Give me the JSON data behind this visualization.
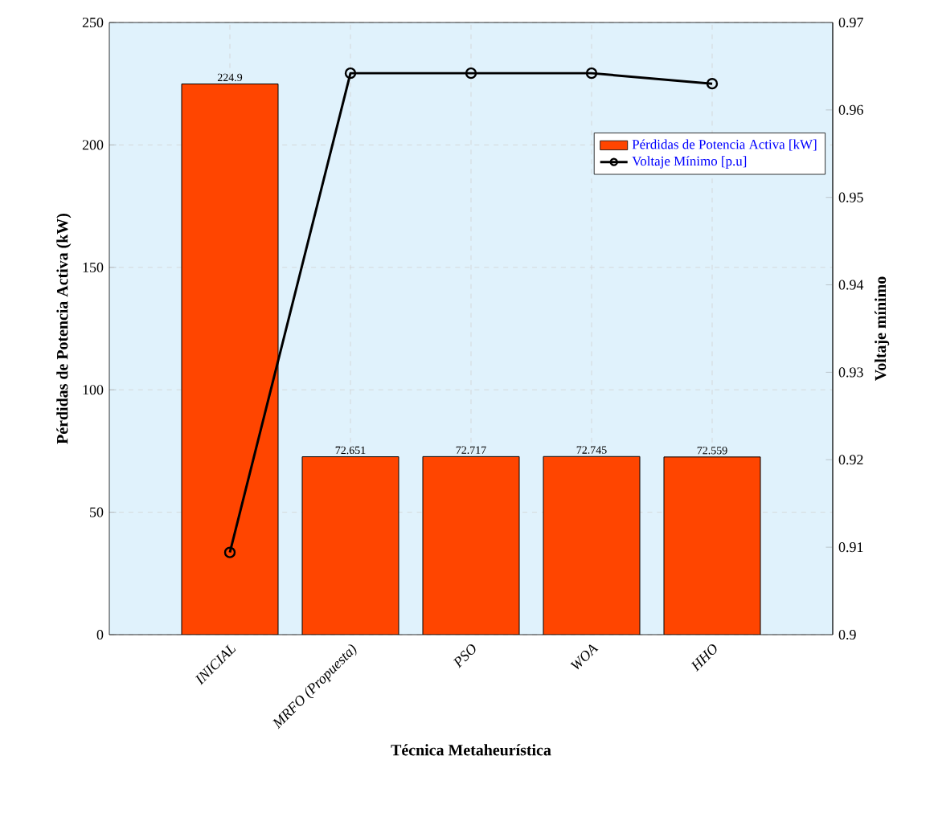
{
  "chart_data": {
    "type": "bar",
    "xlabel": "Técnica Metaheurística",
    "ylabel": "Pérdidas de Potencia Activa (kW)",
    "y2label": "Voltaje mínimo",
    "categories": [
      "INICIAL",
      "MRFO (Propuesta)",
      "PSO",
      "WOA",
      "HHO"
    ],
    "series": [
      {
        "name": "Pérdidas de Potencia Activa [kW]",
        "color": "#ff4500",
        "values": [
          224.9,
          72.651,
          72.717,
          72.745,
          72.559
        ],
        "value_labels": [
          "224.9",
          "72.651",
          "72.717",
          "72.745",
          "72.559"
        ]
      },
      {
        "name": "Voltaje Mínimo [p.u]",
        "type": "line",
        "axis": "y2",
        "color": "#000000",
        "marker": "circle",
        "values": [
          0.9094,
          0.9642,
          0.9642,
          0.9642,
          0.963
        ]
      }
    ],
    "ylim": [
      0,
      250
    ],
    "yticks": [
      0,
      50,
      100,
      150,
      200,
      250
    ],
    "y2lim": [
      0.9,
      0.97
    ],
    "y2ticks": [
      0.9,
      0.91,
      0.92,
      0.93,
      0.94,
      0.95,
      0.96,
      0.97
    ],
    "grid": true,
    "legend": "top right"
  }
}
